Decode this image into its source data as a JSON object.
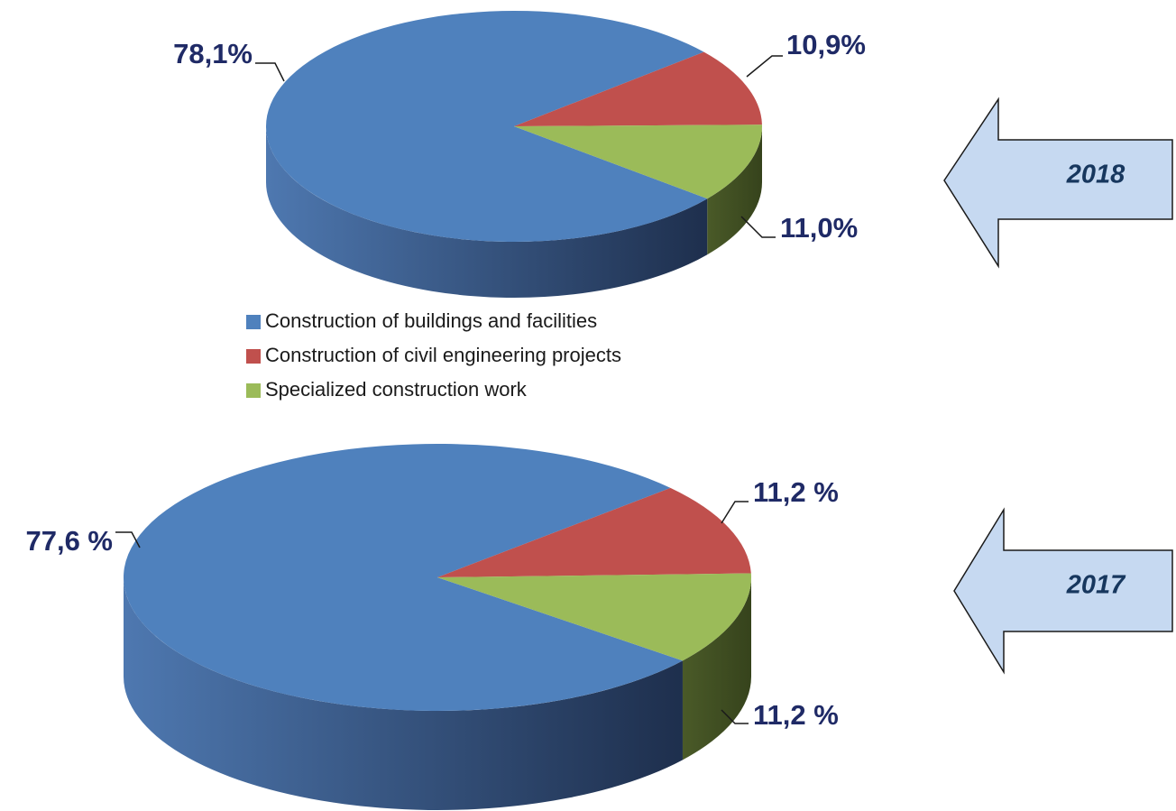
{
  "chart_data": [
    {
      "type": "pie",
      "title": "2018",
      "categories": [
        "Construction of buildings and facilities",
        "Construction of civil engineering projects",
        "Specialized construction work"
      ],
      "colors": [
        "#4f81bd",
        "#c0504d",
        "#9bbb59"
      ],
      "values": [
        78.1,
        10.9,
        11.0
      ],
      "value_labels": [
        "78,1%",
        "10,9%",
        "11,0%"
      ]
    },
    {
      "type": "pie",
      "title": "2017",
      "values": [
        77.6,
        11.2,
        11.2
      ],
      "value_labels": [
        "77,6 %",
        "11,2 %",
        "11,2 %"
      ]
    }
  ]
}
